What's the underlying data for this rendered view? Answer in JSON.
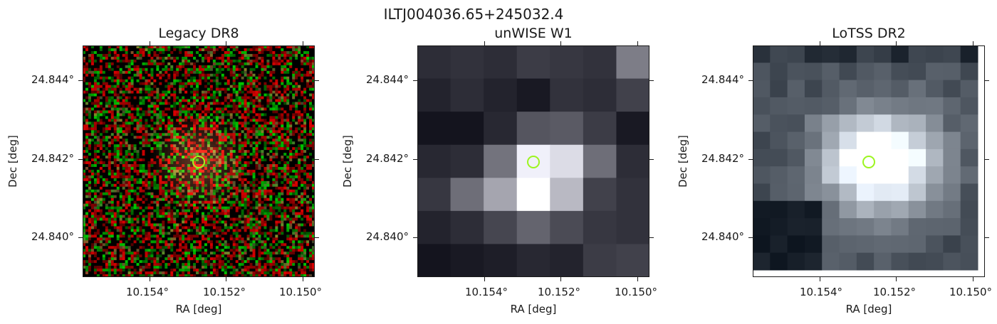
{
  "figure": {
    "title": "ILTJ004036.65+245032.4",
    "colors": {
      "marker": "#9cf51f",
      "axes": "#1a1a1a"
    }
  },
  "panels": [
    {
      "title": "Legacy DR8",
      "xlabel": "RA [deg]",
      "ylabel": "Dec [deg]",
      "xticks": [
        "10.154°",
        "10.152°",
        "10.150°"
      ],
      "yticks": [
        "24.844°",
        "24.842°",
        "24.840°"
      ]
    },
    {
      "title": "unWISE W1",
      "xlabel": "RA [deg]",
      "ylabel": "Dec [deg]",
      "xticks": [
        "10.154°",
        "10.152°",
        "10.150°"
      ],
      "yticks": [
        "24.844°",
        "24.842°",
        "24.840°"
      ]
    },
    {
      "title": "LoTSS DR2",
      "xlabel": "RA [deg]",
      "ylabel": "Dec [deg]",
      "xticks": [
        "10.154°",
        "10.152°",
        "10.150°"
      ],
      "yticks": [
        "24.844°",
        "24.842°",
        "24.840°"
      ]
    }
  ]
}
